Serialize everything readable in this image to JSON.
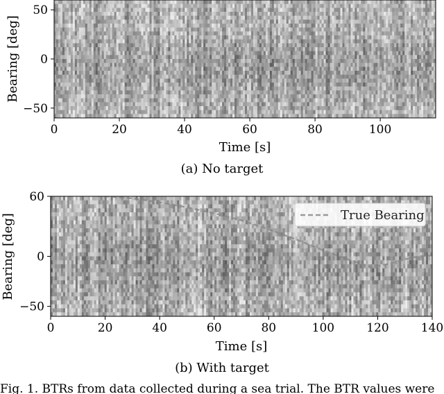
{
  "chart_data": [
    {
      "type": "heatmap",
      "caption": "(a) No target",
      "xlabel": "Time [s]",
      "ylabel": "Bearing [deg]",
      "xlim": [
        0,
        117
      ],
      "ylim": [
        -60,
        60
      ],
      "xticks": [
        0,
        20,
        40,
        60,
        80,
        100
      ],
      "xtick_labels": [
        "0",
        "20",
        "40",
        "60",
        "80",
        "100"
      ],
      "yticks": [
        50,
        0,
        -50
      ],
      "ytick_labels": [
        "50",
        "0",
        "−50"
      ],
      "colormap": "grayscale",
      "legend": null
    },
    {
      "type": "heatmap",
      "caption": "(b) With target",
      "xlabel": "Time [s]",
      "ylabel": "Bearing [deg]",
      "xlim": [
        0,
        140
      ],
      "ylim": [
        -60,
        60
      ],
      "xticks": [
        0,
        20,
        40,
        60,
        80,
        100,
        120,
        140
      ],
      "xtick_labels": [
        "0",
        "20",
        "40",
        "60",
        "80",
        "100",
        "120",
        "140"
      ],
      "yticks": [
        60,
        0,
        -50
      ],
      "ytick_labels": [
        "60",
        "0",
        "−50"
      ],
      "colormap": "grayscale",
      "legend": {
        "position": "top-right",
        "entries": [
          {
            "name": "True Bearing",
            "style": "dashed"
          }
        ]
      },
      "series": [
        {
          "name": "True Bearing",
          "x": [
            0,
            10,
            20,
            30,
            40,
            50,
            60,
            70,
            80,
            90,
            100,
            110,
            118,
            125,
            130,
            135,
            140
          ],
          "y": [
            62,
            61,
            60,
            58,
            54,
            49,
            43,
            36,
            27,
            17,
            6,
            -4,
            -11,
            -7,
            -3,
            0,
            1
          ]
        }
      ]
    }
  ],
  "figure_caption": "Fig. 1.   BTRs from data collected during a sea trial. The BTR values were"
}
